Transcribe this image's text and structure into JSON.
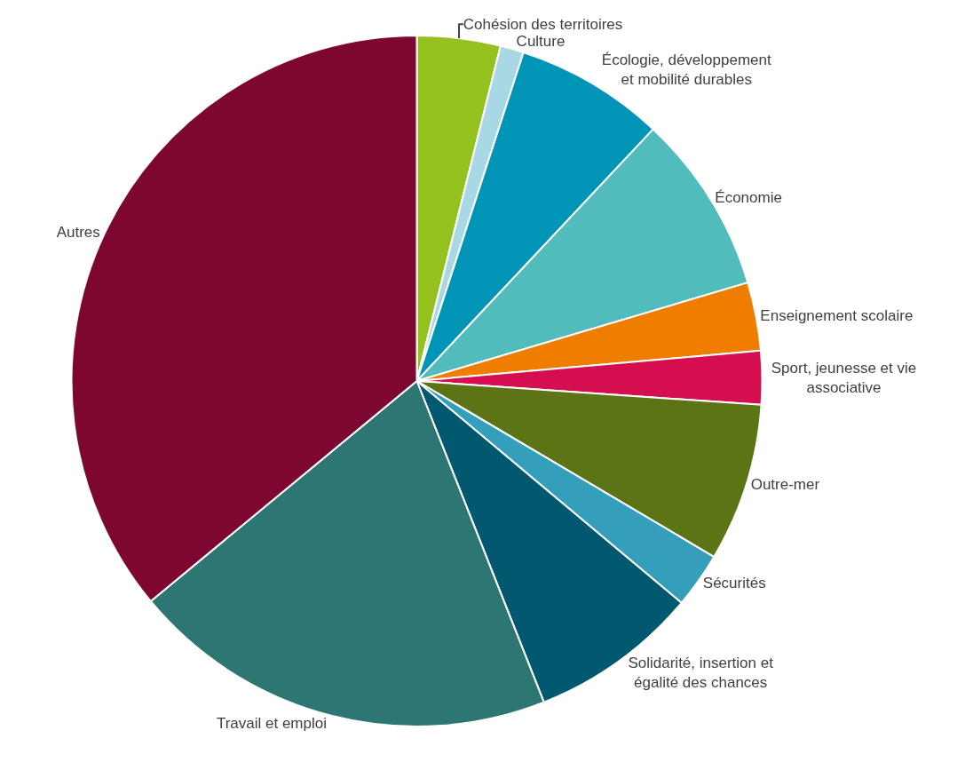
{
  "chart_data": {
    "type": "pie",
    "categories": [
      "Cohésion des territoires",
      "Culture",
      "Écologie, développement et mobilité durables",
      "Économie",
      "Enseignement scolaire",
      "Sport, jeunesse et vie associative",
      "Outre-mer",
      "Sécurités",
      "Solidarité, insertion et égalité des chances",
      "Travail et emploi",
      "Autres"
    ],
    "values": [
      3.9,
      1.1,
      7.0,
      8.4,
      3.2,
      2.5,
      7.4,
      2.6,
      7.9,
      20.0,
      36.0
    ],
    "colors": [
      "#95c11f",
      "#a8d8e4",
      "#0095b6",
      "#52bcbd",
      "#ee7d00",
      "#d50f4f",
      "#5a7416",
      "#359fbb",
      "#02586f",
      "#2d7673",
      "#7d0731"
    ],
    "legend": false
  }
}
